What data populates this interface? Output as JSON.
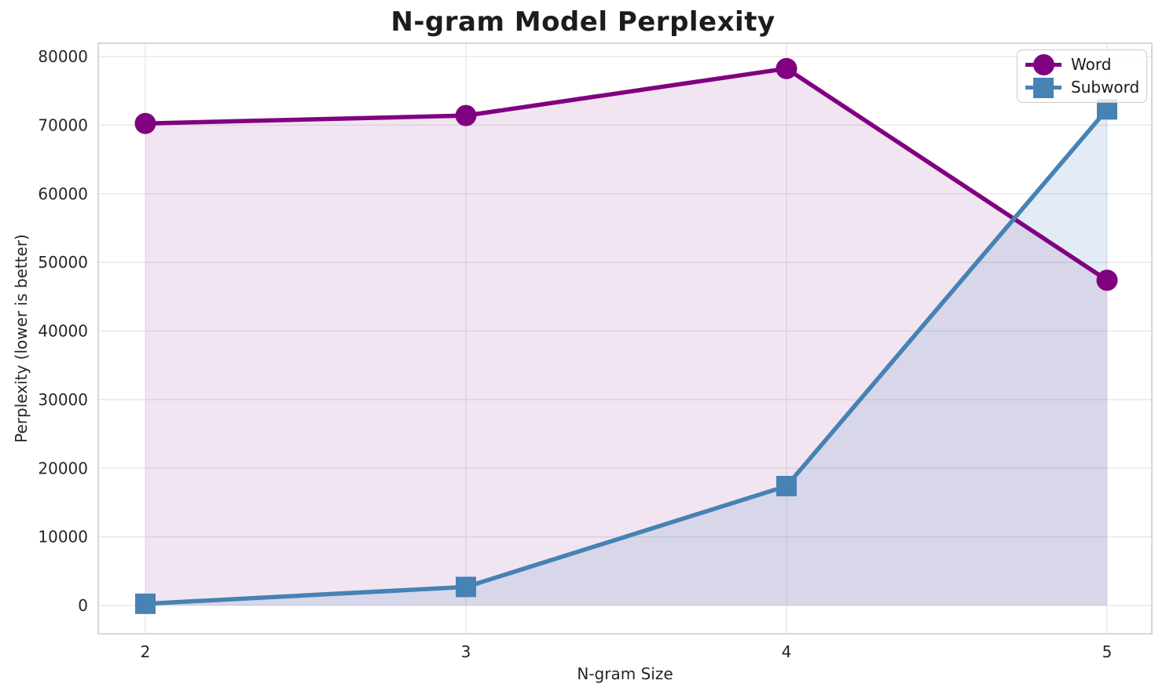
{
  "title": "N-gram Model Perplexity",
  "chart_data": {
    "type": "line",
    "title": "N-gram Model Perplexity",
    "xlabel": "N-gram Size",
    "ylabel": "Perplexity (lower is better)",
    "x": [
      2,
      3,
      4,
      5
    ],
    "xticks": [
      "2",
      "3",
      "4",
      "5"
    ],
    "yticks": [
      0,
      10000,
      20000,
      30000,
      40000,
      50000,
      60000,
      70000,
      80000
    ],
    "ylim": [
      0,
      80000
    ],
    "grid": true,
    "legend_position": "upper right",
    "series": [
      {
        "name": "Word",
        "marker": "circle",
        "color": "#800080",
        "fill_opacity": 0.1,
        "values": [
          70250,
          71400,
          78250,
          47400
        ]
      },
      {
        "name": "Subword",
        "marker": "square",
        "color": "#4682b4",
        "fill_opacity": 0.15,
        "values": [
          250,
          2700,
          17400,
          72300
        ]
      }
    ]
  },
  "colors": {
    "background": "#ffffff",
    "grid": "#e8e8e8",
    "spine": "#c9c9c9",
    "tick_text": "#262626",
    "title_text": "#1c1c1c",
    "legend_border": "#cbcbcb"
  }
}
